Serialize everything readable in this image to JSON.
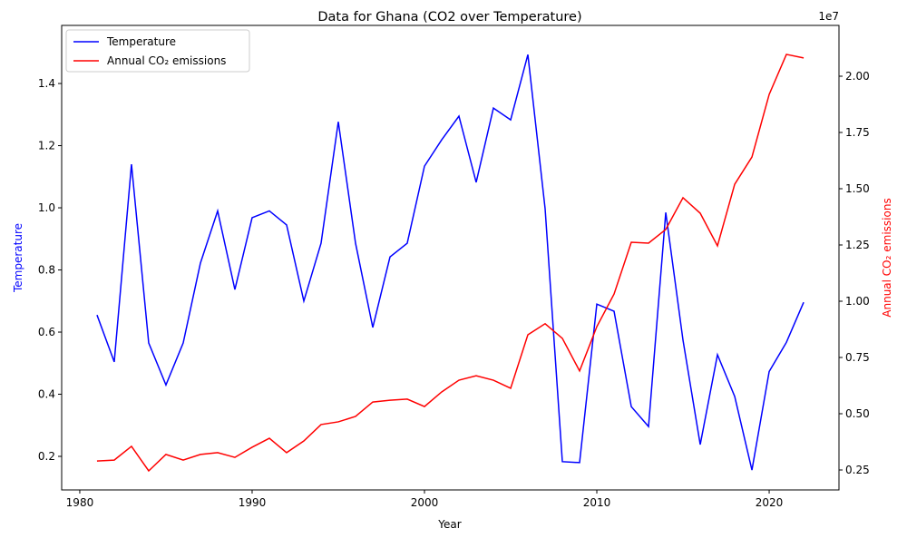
{
  "chart_data": {
    "type": "line",
    "title": "Data for Ghana (CO2 over Temperature)",
    "xlabel": "Year",
    "ylabel": "Temperature",
    "y2label": "Annual CO₂ emissions",
    "y2_offset_label": "1e7",
    "x": [
      1981,
      1982,
      1983,
      1984,
      1985,
      1986,
      1987,
      1988,
      1989,
      1990,
      1991,
      1992,
      1993,
      1994,
      1995,
      1996,
      1997,
      1998,
      1999,
      2000,
      2001,
      2002,
      2003,
      2004,
      2005,
      2006,
      2007,
      2008,
      2009,
      2010,
      2011,
      2012,
      2013,
      2014,
      2015,
      2016,
      2017,
      2018,
      2019,
      2020,
      2021,
      2022
    ],
    "series": [
      {
        "name": "Temperature",
        "color": "#0000ff",
        "axis": "y",
        "values": [
          0.655,
          0.504,
          1.14,
          0.565,
          0.43,
          0.565,
          0.822,
          0.99,
          0.737,
          0.968,
          0.99,
          0.945,
          0.7,
          0.886,
          1.277,
          0.886,
          0.615,
          0.842,
          0.886,
          1.134,
          1.219,
          1.295,
          1.082,
          1.321,
          1.283,
          1.493,
          0.997,
          0.183,
          0.18,
          0.69,
          0.667,
          0.36,
          0.296,
          0.985,
          0.574,
          0.238,
          0.527,
          0.393,
          0.156,
          0.473,
          0.567,
          0.696
        ]
      },
      {
        "name": "Annual CO₂ emissions",
        "color": "#ff0000",
        "axis": "y2",
        "values": [
          2900000,
          2940000,
          3550000,
          2460000,
          3190000,
          2940000,
          3190000,
          3270000,
          3060000,
          3510000,
          3910000,
          3270000,
          3790000,
          4520000,
          4640000,
          4880000,
          5520000,
          5600000,
          5650000,
          5320000,
          5970000,
          6490000,
          6690000,
          6490000,
          6130000,
          8510000,
          9000000,
          8350000,
          6900000,
          8870000,
          10320000,
          12620000,
          12580000,
          13190000,
          14600000,
          13910000,
          12460000,
          15200000,
          16410000,
          19190000,
          20970000,
          20810000
        ]
      }
    ],
    "xlim": [
      1978.95,
      2024.05
    ],
    "xticks": [
      1980,
      1990,
      2000,
      2010,
      2020
    ],
    "ylim": [
      0.092,
      1.587
    ],
    "yticks": [
      0.2,
      0.4,
      0.6,
      0.8,
      {
        "value": 1,
        "label": "1.0"
      },
      1.2,
      1.4
    ],
    "y2lim": [
      1613000,
      22258000
    ],
    "y2ticks": [
      {
        "value": 2500000,
        "label": "0.25"
      },
      {
        "value": 5000000,
        "label": "0.50"
      },
      {
        "value": 7500000,
        "label": "0.75"
      },
      {
        "value": 10000000,
        "label": "1.00"
      },
      {
        "value": 12500000,
        "label": "1.25"
      },
      {
        "value": 15000000,
        "label": "1.50"
      },
      {
        "value": 17500000,
        "label": "1.75"
      },
      {
        "value": 20000000,
        "label": "2.00"
      }
    ],
    "legend": "upper left",
    "grid": false
  }
}
